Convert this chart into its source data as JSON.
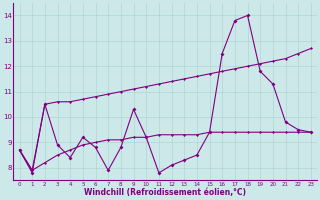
{
  "xlabel": "Windchill (Refroidissement éolien,°C)",
  "bg_color": "#cce8e8",
  "line_color": "#800080",
  "xlim": [
    -0.5,
    23.5
  ],
  "ylim": [
    7.5,
    14.5
  ],
  "yticks": [
    8,
    9,
    10,
    11,
    12,
    13,
    14
  ],
  "xticks": [
    0,
    1,
    2,
    3,
    4,
    5,
    6,
    7,
    8,
    9,
    10,
    11,
    12,
    13,
    14,
    15,
    16,
    17,
    18,
    19,
    20,
    21,
    22,
    23
  ],
  "series1_y": [
    8.7,
    7.8,
    10.5,
    8.9,
    8.4,
    9.2,
    8.8,
    7.9,
    8.8,
    10.3,
    9.2,
    7.8,
    8.1,
    8.3,
    8.5,
    9.4,
    12.5,
    13.8,
    14.0,
    11.8,
    11.3,
    9.8,
    9.5,
    9.4
  ],
  "series2_y": [
    8.7,
    7.9,
    8.2,
    8.5,
    8.7,
    8.9,
    9.0,
    9.1,
    9.1,
    9.2,
    9.2,
    9.3,
    9.3,
    9.3,
    9.3,
    9.4,
    9.4,
    9.4,
    9.4,
    9.4,
    9.4,
    9.4,
    9.4,
    9.4
  ],
  "series3_y": [
    8.7,
    7.9,
    10.5,
    10.6,
    10.6,
    10.7,
    10.8,
    10.9,
    11.0,
    11.1,
    11.2,
    11.3,
    11.4,
    11.5,
    11.6,
    11.7,
    11.8,
    11.9,
    12.0,
    12.1,
    12.2,
    12.3,
    12.5,
    12.7
  ]
}
